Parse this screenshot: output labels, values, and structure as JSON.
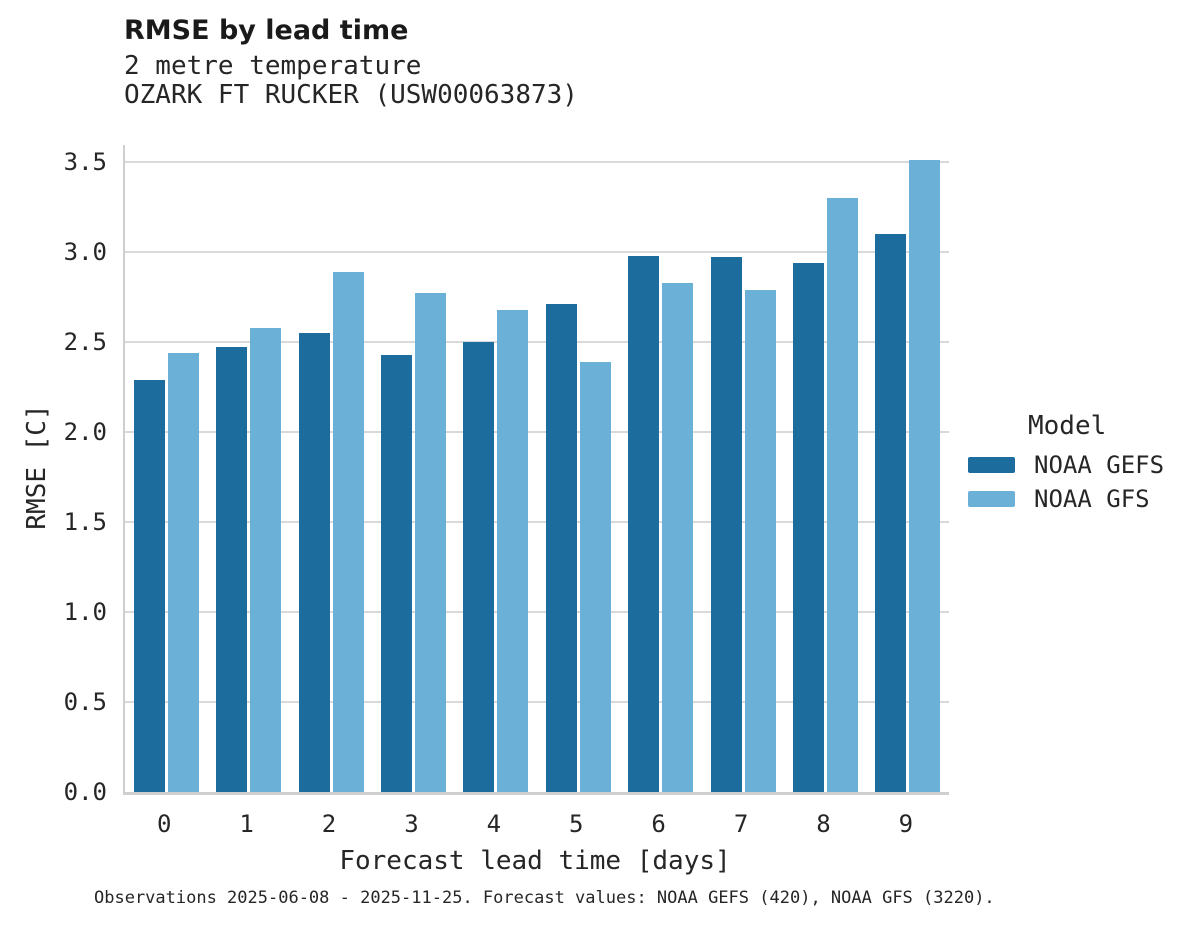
{
  "header": {
    "title": "RMSE by lead time",
    "subtitle_line1": "2 metre temperature",
    "subtitle_line2": "OZARK FT RUCKER (USW00063873)"
  },
  "legend": {
    "title": "Model",
    "entries": [
      {
        "label": "NOAA GEFS",
        "color": "#1c6d9e"
      },
      {
        "label": "NOAA GFS",
        "color": "#6bb0d7"
      }
    ]
  },
  "footer": {
    "text": "Observations 2025-06-08 - 2025-11-25. Forecast values: NOAA GEFS (420), NOAA GFS (3220)."
  },
  "chart_data": {
    "type": "bar",
    "title": "RMSE by lead time",
    "subtitle": [
      "2 metre temperature",
      "OZARK FT RUCKER (USW00063873)"
    ],
    "categories": [
      "0",
      "1",
      "2",
      "3",
      "4",
      "5",
      "6",
      "7",
      "8",
      "9"
    ],
    "series": [
      {
        "name": "NOAA GEFS",
        "color": "#1c6d9e",
        "values": [
          2.29,
          2.47,
          2.55,
          2.43,
          2.5,
          2.71,
          2.98,
          2.97,
          2.94,
          3.1
        ]
      },
      {
        "name": "NOAA GFS",
        "color": "#6bb0d7",
        "values": [
          2.44,
          2.58,
          2.89,
          2.77,
          2.68,
          2.39,
          2.83,
          2.79,
          3.3,
          3.51
        ]
      }
    ],
    "xlabel": "Forecast lead time [days]",
    "ylabel": "RMSE [C]",
    "ylim": [
      0.0,
      3.5
    ],
    "ytick_step": 0.5,
    "yticks": [
      "0.0",
      "0.5",
      "1.0",
      "1.5",
      "2.0",
      "2.5",
      "3.0",
      "3.5"
    ],
    "grid": true,
    "legend_title": "Model",
    "legend_position": "right",
    "colors": {
      "grid": "#d9d9d9",
      "spine": "#cfcfcf",
      "text": "#262626"
    }
  }
}
